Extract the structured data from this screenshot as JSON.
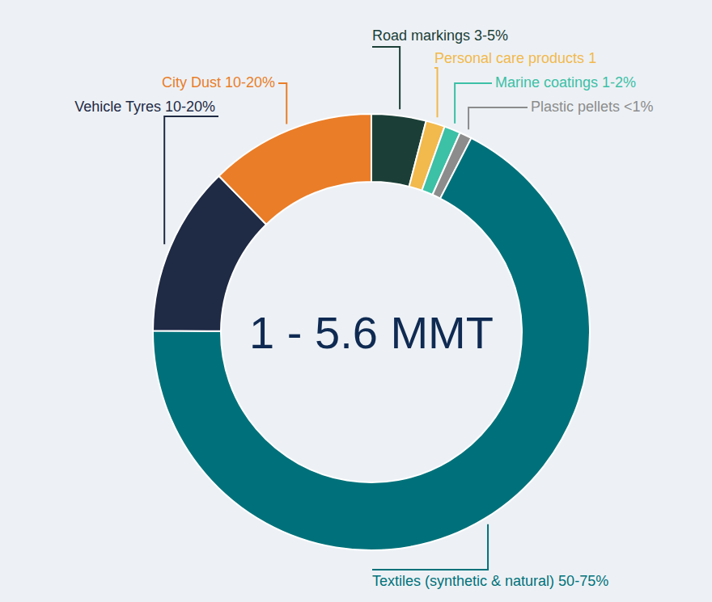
{
  "chart_data": {
    "type": "donut",
    "annotation": "1 - 5.6 MMT",
    "categories": [
      "Road markings",
      "Personal care products",
      "Marine coatings",
      "Plastic pellets",
      "Textiles (synthetic & natural)",
      "Vehicle Tyres",
      "City Dust"
    ],
    "values": [
      4,
      1.4,
      1.2,
      0.9,
      67,
      12.5,
      12.2
    ],
    "value_labels": [
      "3-5%",
      "1",
      "1-2%",
      "<1%",
      "50-75%",
      "10-20%",
      "10-20%"
    ],
    "colors": [
      "#1b3f37",
      "#f2b94c",
      "#3cc0a6",
      "#8c8c8c",
      "#00717a",
      "#1f2a45",
      "#ea7d27"
    ],
    "data_labels": true
  }
}
